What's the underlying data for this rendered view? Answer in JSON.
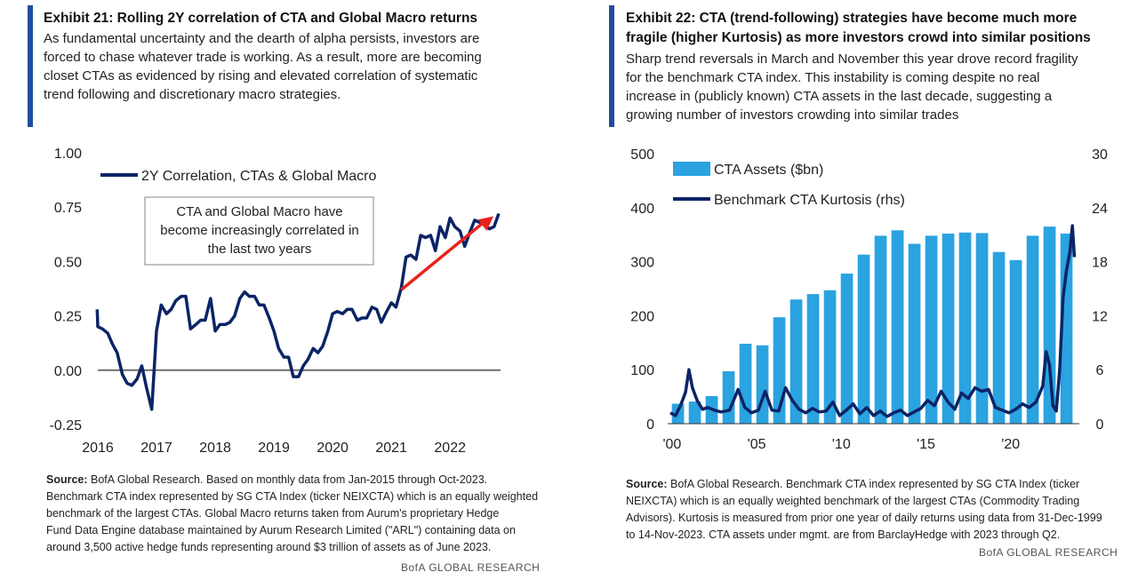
{
  "colors": {
    "accent_bar": "#1f4e9e",
    "line_navy": "#0c2466",
    "bar_blue": "#2aa3e0",
    "arrow_red": "#e8231c",
    "zero_line": "#6e6e6e"
  },
  "exhibit21": {
    "title": "Exhibit 21: Rolling 2Y correlation of CTA  and Global Macro returns",
    "subtitle_lines": [
      "As fundamental  uncertainty  and the dearth of alpha persists, investors are",
      "forced to chase whatever trade is working.  As a result, more are becoming",
      "closet CTAs as evidenced by rising and elevated correlation  of systematic",
      "trend following  and discretionary  macro strategies."
    ],
    "source_label": "Source:",
    "source_lines": [
      " BofA Global Research.  Based on monthly data from Jan-2015 through Oct-2023.",
      "Benchmark CTA index represented by SG CTA Index (ticker NEIXCTA) which is an equally weighted",
      "benchmark of the largest CTAs.  Global Macro returns taken from Aurum's proprietary Hedge",
      "Fund Data Engine database maintained by Aurum Research Limited (\"ARL\") containing data on",
      "around 3,500 active hedge funds representing around $3 trillion of assets as of June 2023."
    ],
    "brand": "BofA GLOBAL RESEARCH",
    "chart_data": {
      "type": "line",
      "title": "",
      "series": [
        {
          "name": "2Y Correlation, CTAs & Global Macro",
          "x": [
            2015.92,
            2016.0,
            2016.08,
            2016.17,
            2016.25,
            2016.33,
            2016.42,
            2016.5,
            2016.58,
            2016.67,
            2016.75,
            2016.83,
            2016.92,
            2017.0,
            2017.08,
            2017.17,
            2017.25,
            2017.33,
            2017.42,
            2017.5,
            2017.58,
            2017.67,
            2017.75,
            2017.83,
            2017.92,
            2018.0,
            2018.08,
            2018.17,
            2018.25,
            2018.33,
            2018.42,
            2018.5,
            2018.58,
            2018.67,
            2018.75,
            2018.83,
            2018.92,
            2019.0,
            2019.08,
            2019.17,
            2019.25,
            2019.33,
            2019.42,
            2019.5,
            2019.58,
            2019.67,
            2019.75,
            2019.83,
            2019.92,
            2020.0,
            2020.08,
            2020.17,
            2020.25,
            2020.33,
            2020.42,
            2020.5,
            2020.58,
            2020.67,
            2020.75,
            2020.83,
            2020.92,
            2021.0,
            2021.08,
            2021.17,
            2021.25,
            2021.33,
            2021.42,
            2021.5,
            2021.58,
            2021.67,
            2021.75,
            2021.83,
            2021.92,
            2022.0,
            2022.08,
            2022.17,
            2022.25,
            2022.33,
            2022.42,
            2022.5,
            2022.58,
            2022.67,
            2022.75,
            2022.83
          ],
          "y": [
            0.28,
            0.2,
            0.19,
            0.17,
            0.12,
            0.08,
            -0.02,
            -0.06,
            -0.07,
            -0.04,
            0.02,
            -0.08,
            -0.18,
            0.18,
            0.3,
            0.26,
            0.28,
            0.32,
            0.34,
            0.34,
            0.19,
            0.21,
            0.23,
            0.23,
            0.33,
            0.18,
            0.21,
            0.21,
            0.22,
            0.25,
            0.33,
            0.36,
            0.34,
            0.34,
            0.3,
            0.3,
            0.24,
            0.18,
            0.1,
            0.06,
            0.06,
            -0.03,
            -0.03,
            0.02,
            0.05,
            0.1,
            0.08,
            0.11,
            0.18,
            0.26,
            0.27,
            0.26,
            0.28,
            0.28,
            0.23,
            0.24,
            0.24,
            0.29,
            0.28,
            0.22,
            0.27,
            0.31,
            0.29,
            0.38,
            0.52,
            0.53,
            0.51,
            0.62,
            0.61,
            0.62,
            0.55,
            0.66,
            0.61,
            0.7,
            0.66,
            0.64,
            0.57,
            0.63,
            0.69,
            0.68,
            0.67,
            0.65,
            0.66,
            0.72
          ]
        }
      ],
      "xlim": [
        2016,
        2022.83
      ],
      "ylim": [
        -0.25,
        1.0
      ],
      "x_ticks": [
        2016,
        2017,
        2018,
        2019,
        2020,
        2021,
        2022
      ],
      "x_tick_labels": [
        "2016",
        "2017",
        "2018",
        "2019",
        "2020",
        "2021",
        "2022"
      ],
      "y_ticks": [
        -0.25,
        0.0,
        0.25,
        0.5,
        0.75,
        1.0
      ],
      "y_tick_labels": [
        "-0.25",
        "0.00",
        "0.25",
        "0.50",
        "0.75",
        "1.00"
      ],
      "legend": "top-left",
      "annotation": {
        "lines": [
          "CTA and  Global Macro have",
          "become increasingly  correlated in",
          "the last two years"
        ]
      },
      "arrow": {
        "from": [
          2021.17,
          0.37
        ],
        "to": [
          2022.83,
          0.72
        ]
      },
      "grid": false
    }
  },
  "exhibit22": {
    "title_lines": [
      "Exhibit 22: CTA (trend-following) strategies have become much more",
      "fragile (higher Kurtosis) as more investors crowd into similar positions"
    ],
    "subtitle_lines": [
      "Sharp trend reversals in March and November this year drove record fragility",
      "for the benchmark  CTA index.  This instability  is coming despite  no real",
      "increase in (publicly known) CTA assets in the last decade, suggesting a",
      "growing number of investors  crowding into similar  trades"
    ],
    "source_label": "Source:",
    "source_lines": [
      " BofA Global Research.  Benchmark CTA index represented by SG CTA Index (ticker",
      "NEIXCTA) which is an equally weighted benchmark of the largest CTAs (Commodity Trading",
      "Advisors).  Kurtosis is measured from prior one year of daily returns using data from 31-Dec-1999",
      "to 14-Nov-2023.  CTA assets under mgmt. are from BarclayHedge with 2023 through Q2."
    ],
    "brand": "BofA GLOBAL RESEARCH",
    "chart_data": {
      "type": "bar",
      "title": "",
      "categories": [
        "2000",
        "2001",
        "2002",
        "2003",
        "2004",
        "2005",
        "2006",
        "2007",
        "2008",
        "2009",
        "2010",
        "2011",
        "2012",
        "2013",
        "2014",
        "2015",
        "2016",
        "2017",
        "2018",
        "2019",
        "2020",
        "2021",
        "2022",
        "2023"
      ],
      "series": [
        {
          "name": "CTA Assets ($bn)",
          "axis": "left",
          "values": [
            37,
            41,
            51,
            97,
            148,
            145,
            197,
            230,
            240,
            247,
            278,
            313,
            348,
            358,
            333,
            348,
            352,
            354,
            353,
            318,
            303,
            348,
            365,
            352
          ]
        },
        {
          "name": "Benchmark CTA Kurtosis (rhs)",
          "axis": "right",
          "type": "line",
          "x": [
            2000.0,
            2000.3,
            2000.6,
            2000.9,
            2001.1,
            2001.3,
            2001.6,
            2001.9,
            2002.2,
            2002.6,
            2003.0,
            2003.5,
            2004.0,
            2004.4,
            2004.8,
            2005.2,
            2005.6,
            2006.0,
            2006.4,
            2006.8,
            2007.2,
            2007.6,
            2008.0,
            2008.4,
            2008.8,
            2009.2,
            2009.6,
            2010.0,
            2010.4,
            2010.8,
            2011.2,
            2011.6,
            2012.0,
            2012.4,
            2012.8,
            2013.2,
            2013.6,
            2014.0,
            2014.4,
            2014.8,
            2015.2,
            2015.6,
            2016.0,
            2016.4,
            2016.8,
            2017.2,
            2017.6,
            2018.0,
            2018.4,
            2018.8,
            2019.2,
            2019.6,
            2020.0,
            2020.4,
            2020.8,
            2021.2,
            2021.6,
            2022.0,
            2022.2,
            2022.4,
            2022.6,
            2022.8,
            2023.0,
            2023.2,
            2023.4,
            2023.6,
            2023.75,
            2023.87
          ],
          "y": [
            1.2,
            0.9,
            2.0,
            3.5,
            6.0,
            4.0,
            2.5,
            1.6,
            1.8,
            1.5,
            1.3,
            1.5,
            3.8,
            1.8,
            1.2,
            1.5,
            3.6,
            1.5,
            1.4,
            4.0,
            2.6,
            1.6,
            1.2,
            1.7,
            1.3,
            1.4,
            2.4,
            0.9,
            1.5,
            2.2,
            1.1,
            1.8,
            0.9,
            1.4,
            0.8,
            1.2,
            1.5,
            0.9,
            1.3,
            1.7,
            2.6,
            2.0,
            3.6,
            2.4,
            1.6,
            3.4,
            2.8,
            4.0,
            3.6,
            3.8,
            1.8,
            1.5,
            1.2,
            1.6,
            2.2,
            1.8,
            2.4,
            4.2,
            8.0,
            6.5,
            2.0,
            1.4,
            6.0,
            14.0,
            17.0,
            19.0,
            22.0,
            18.5
          ]
        }
      ],
      "y_left_lim": [
        0,
        500
      ],
      "y_right_lim": [
        0,
        30
      ],
      "y_left_ticks": [
        0,
        100,
        200,
        300,
        400,
        500
      ],
      "y_right_ticks": [
        0,
        6,
        12,
        18,
        24,
        30
      ],
      "x_tick_labels": [
        "'00",
        "'05",
        "'10",
        "'15",
        "'20"
      ],
      "x_tick_values": [
        2000,
        2005,
        2010,
        2015,
        2020
      ],
      "legend": "top-left",
      "grid": false
    }
  }
}
